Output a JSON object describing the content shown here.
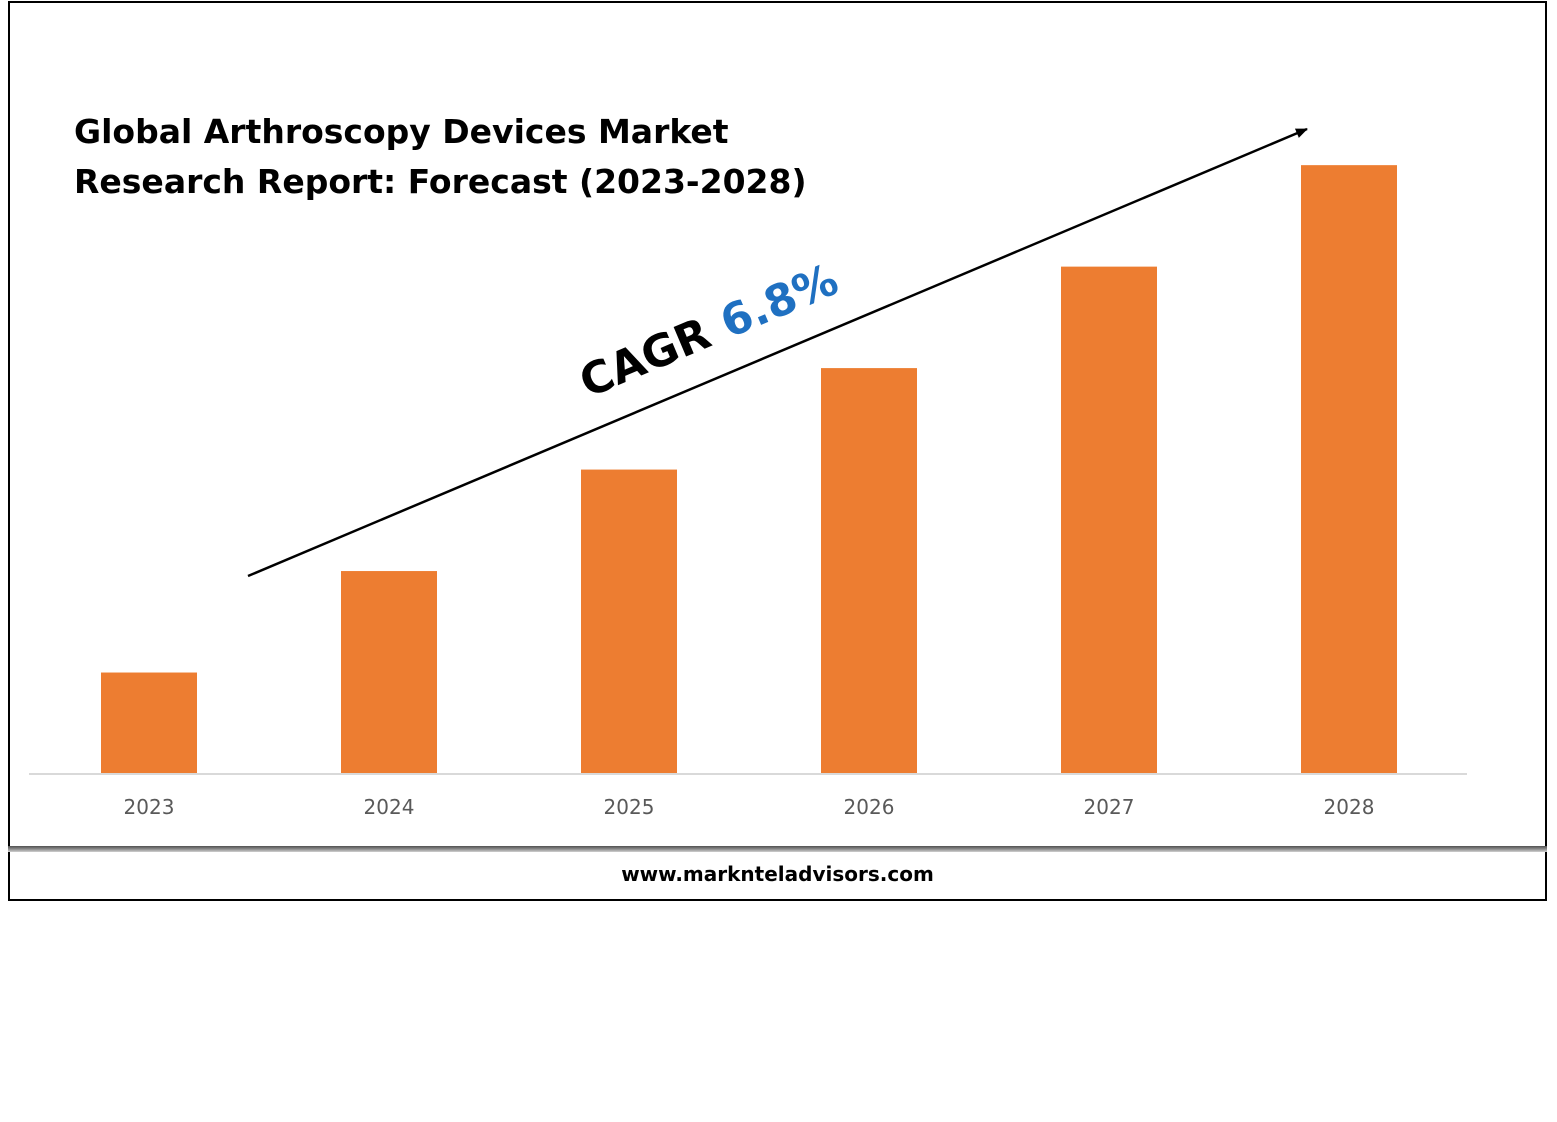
{
  "title_lines": [
    "Global Arthroscopy Devices Market",
    "Research Report: Forecast (2023-2028)"
  ],
  "cagr": {
    "label": "CAGR",
    "value": "6.8%"
  },
  "footer": {
    "url": "www.marknteladvisors.com"
  },
  "colors": {
    "bar": "#ed7d31",
    "cagr_value": "#1f70c1",
    "axis": "#d9d9d9",
    "tick_text": "#595959"
  },
  "chart_data": {
    "type": "bar",
    "categories": [
      "2023",
      "2024",
      "2025",
      "2026",
      "2027",
      "2028"
    ],
    "values": [
      1.0,
      2.0,
      3.0,
      4.0,
      5.0,
      6.0
    ],
    "ylim": [
      0,
      6.1
    ],
    "xlabel": "",
    "ylabel": "",
    "grid": false,
    "legend": "none",
    "annotation": "CAGR 6.8%"
  }
}
